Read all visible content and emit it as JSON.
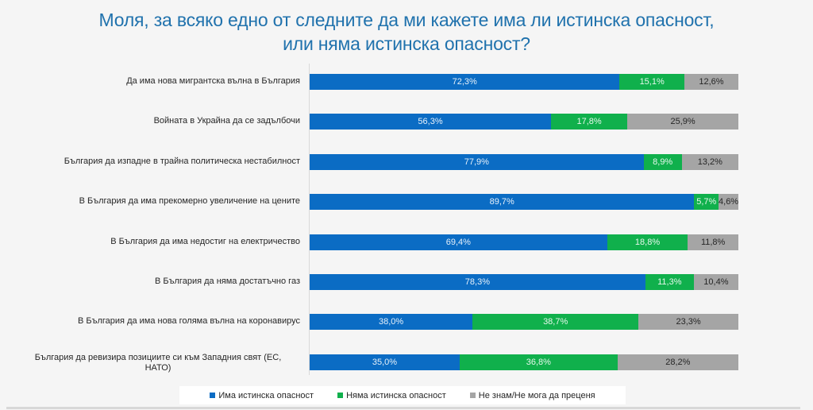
{
  "chart_data": {
    "type": "bar",
    "orientation": "horizontal",
    "stacked": true,
    "title_lines": [
      "Моля, за всяко едно от следните да ми кажете има ли истинска опасност,",
      "или няма истинска опасност?"
    ],
    "categories": [
      "Да има нова мигрантска вълна в България",
      "Войната в Украйна да се задълбочи",
      "България да изпадне в трайна политическа нестабилност",
      "В България да има прекомерно увеличение на цените",
      "В България да има недостиг на електричество",
      "В България да няма достатъчно газ",
      "В България да има нова голяма вълна на коронавирус",
      "България да ревизира позициите си към Западния свят (ЕС, НАТО)"
    ],
    "series": [
      {
        "name": "Има истинска опасност",
        "color": "#0b6cc4",
        "values": [
          72.3,
          56.3,
          77.9,
          89.7,
          69.4,
          78.3,
          38.0,
          35.0
        ],
        "labels": [
          "72,3%",
          "56,3%",
          "77,9%",
          "89,7%",
          "69,4%",
          "78,3%",
          "38,0%",
          "35,0%"
        ]
      },
      {
        "name": "Няма истинска опасност",
        "color": "#10b04c",
        "values": [
          15.1,
          17.8,
          8.9,
          5.7,
          18.8,
          11.3,
          38.7,
          36.8
        ],
        "labels": [
          "15,1%",
          "17,8%",
          "8,9%",
          "5,7%",
          "18,8%",
          "11,3%",
          "38,7%",
          "36,8%"
        ]
      },
      {
        "name": "Не знам/Не мога да преценя",
        "color": "#a5a5a5",
        "values": [
          12.6,
          25.9,
          13.2,
          4.6,
          11.8,
          10.4,
          23.3,
          28.2
        ],
        "labels": [
          "12,6%",
          "25,9%",
          "13,2%",
          "4,6%",
          "11,8%",
          "10,4%",
          "23,3%",
          "28,2%"
        ]
      }
    ],
    "xlim": [
      0,
      100
    ],
    "unit": "%",
    "grid": false,
    "legend_position": "bottom"
  }
}
